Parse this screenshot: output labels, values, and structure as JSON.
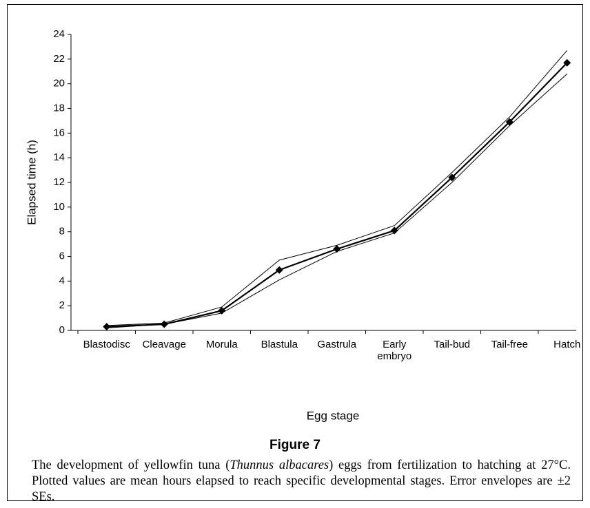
{
  "chart_data": {
    "type": "line",
    "title": "Figure 7",
    "caption": [
      "The development of yellowfin tuna (",
      "Thunnus albacares",
      ") eggs from fertilization to hatching at 27°C. Plotted values are mean hours elapsed to reach specific developmental stages. Error envelopes are ±2 SEs."
    ],
    "x_label": "Egg stage",
    "y_label": "Elapsed time (h)",
    "categories": [
      "Blastodisc",
      "Cleavage",
      "Morula",
      "Blastula",
      "Gastrula",
      "Early\nembryo",
      "Tail-bud",
      "Tail-free",
      "Hatch"
    ],
    "series": [
      {
        "color": "#000000",
        "values": [
          0.3,
          0.5,
          1.6,
          4.9,
          6.6,
          8.1,
          12.4,
          16.9,
          21.7
        ],
        "markers": true
      },
      {
        "color": "#000000",
        "values": [
          0.4,
          0.6,
          1.9,
          5.7,
          6.9,
          8.5,
          12.8,
          17.3,
          22.7
        ],
        "markers": false
      },
      {
        "color": "#000000",
        "values": [
          0.2,
          0.5,
          1.4,
          4.1,
          6.4,
          7.9,
          12.0,
          16.6,
          20.8
        ],
        "markers": false
      }
    ],
    "ylim": [
      0,
      24
    ],
    "yticks": [
      0,
      2,
      4,
      6,
      8,
      10,
      12,
      14,
      16,
      18,
      20,
      22,
      24
    ],
    "grid": false
  }
}
